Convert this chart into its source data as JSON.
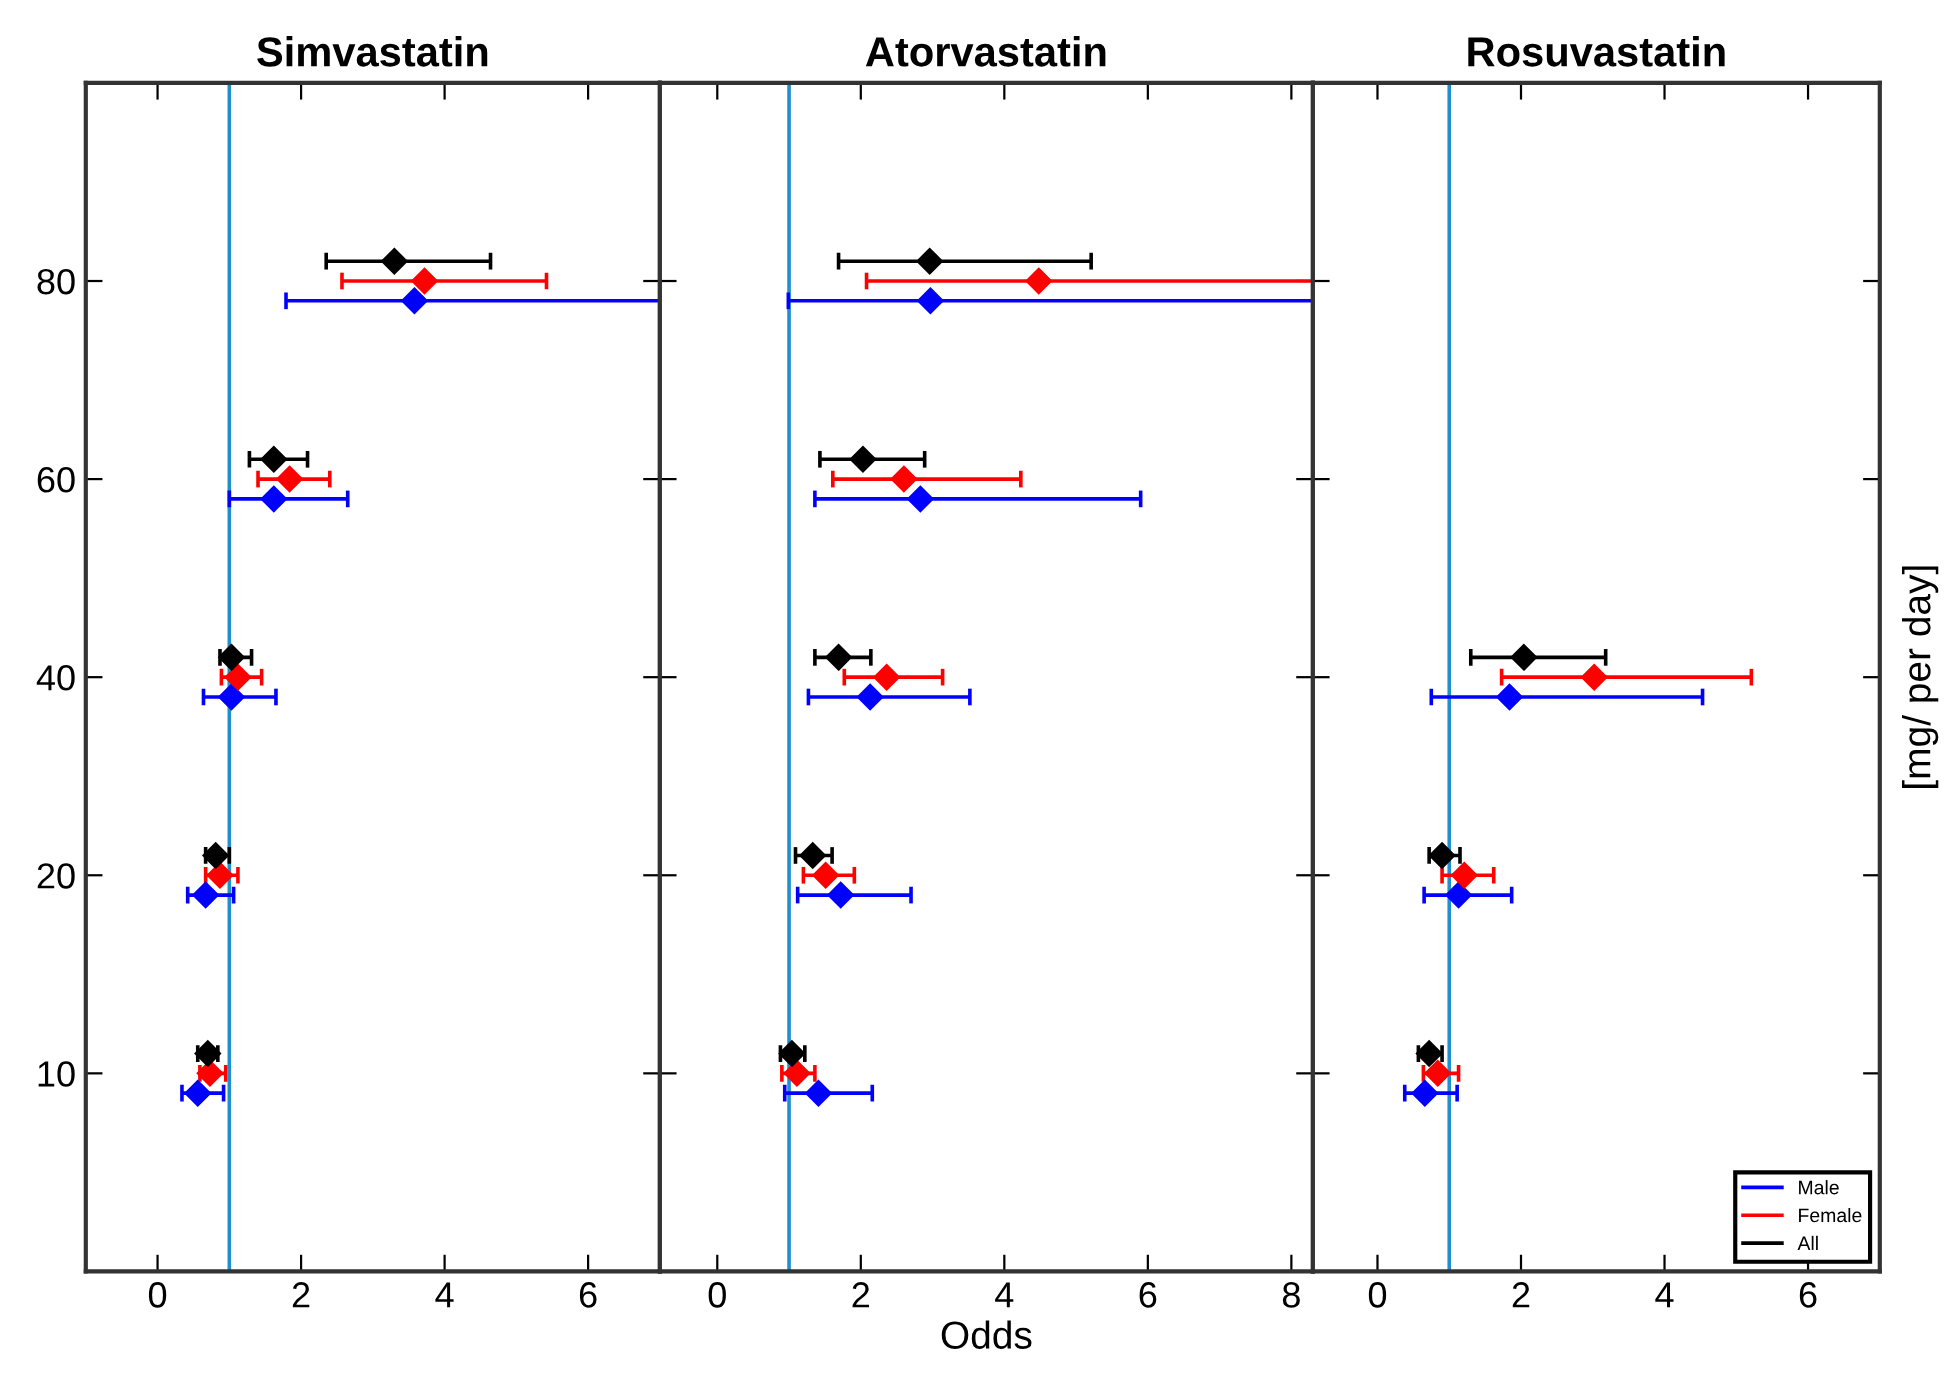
{
  "chart_data": [
    {
      "type": "scatter",
      "orientation": "horizontal",
      "title": "Simvastatin",
      "xlim": [
        -1,
        7
      ],
      "xticks": [
        0,
        2,
        4,
        6
      ],
      "categories": [
        "80",
        "60",
        "40",
        "20",
        "10"
      ],
      "marker": "diamond",
      "grid": false,
      "legend": false,
      "ref_lines": [
        {
          "axis": "x",
          "value": 1,
          "color": "#1f8fd0"
        }
      ],
      "series": [
        {
          "color": "#0000ff",
          "values": [
            3.58,
            1.62,
            1.03,
            0.67,
            0.56
          ],
          "errors": [
            [
              1.79,
              7
            ],
            [
              1.0,
              2.65
            ],
            [
              0.64,
              1.65
            ],
            [
              0.42,
              1.06
            ],
            [
              0.34,
              0.92
            ]
          ]
        },
        {
          "color": "#ff0000",
          "values": [
            3.72,
            1.84,
            1.12,
            0.87,
            0.73
          ],
          "errors": [
            [
              2.57,
              5.42
            ],
            [
              1.4,
              2.4
            ],
            [
              0.89,
              1.45
            ],
            [
              0.67,
              1.12
            ],
            [
              0.59,
              0.95
            ]
          ]
        },
        {
          "color": "#000000",
          "values": [
            3.3,
            1.62,
            1.03,
            0.81,
            0.7
          ],
          "errors": [
            [
              2.35,
              4.64
            ],
            [
              1.28,
              2.09
            ],
            [
              0.87,
              1.31
            ],
            [
              0.67,
              1.0
            ],
            [
              0.56,
              0.84
            ]
          ]
        }
      ]
    },
    {
      "type": "scatter",
      "orientation": "horizontal",
      "title": "Atorvastatin",
      "xlabel": "Odds",
      "xlim": [
        -0.8,
        8.3
      ],
      "xticks": [
        0,
        2,
        4,
        6,
        8
      ],
      "categories": [
        "80",
        "60",
        "40",
        "20",
        "10"
      ],
      "tick_labels": "x",
      "marker": "diamond",
      "grid": false,
      "legend": false,
      "ref_lines": [
        {
          "axis": "x",
          "value": 1,
          "color": "#1f8fd0"
        }
      ],
      "series": [
        {
          "color": "#0000ff",
          "values": [
            2.97,
            2.83,
            2.13,
            1.72,
            1.41
          ],
          "errors": [
            [
              0.99,
              8.3
            ],
            [
              1.36,
              5.9
            ],
            [
              1.27,
              3.52
            ],
            [
              1.12,
              2.7
            ],
            [
              0.94,
              2.16
            ]
          ]
        },
        {
          "color": "#ff0000",
          "values": [
            4.48,
            2.6,
            2.36,
            1.51,
            1.11
          ],
          "errors": [
            [
              2.08,
              8.3
            ],
            [
              1.61,
              4.23
            ],
            [
              1.77,
              3.14
            ],
            [
              1.2,
              1.91
            ],
            [
              0.9,
              1.36
            ]
          ]
        },
        {
          "color": "#000000",
          "values": [
            2.96,
            2.03,
            1.69,
            1.33,
            1.04
          ],
          "errors": [
            [
              1.69,
              5.21
            ],
            [
              1.43,
              2.89
            ],
            [
              1.36,
              2.14
            ],
            [
              1.09,
              1.6
            ],
            [
              0.88,
              1.22
            ]
          ]
        }
      ]
    },
    {
      "type": "scatter",
      "orientation": "horizontal",
      "title": "Rosuvastatin",
      "ylabel": "[mg/ per day]",
      "xlim": [
        -0.9,
        7
      ],
      "xticks": [
        0,
        2,
        4,
        6
      ],
      "categories": [
        "80",
        "60",
        "40",
        "20",
        "10"
      ],
      "tick_labels": "x",
      "marker": "diamond",
      "grid": false,
      "legend": "bottom right",
      "ref_lines": [
        {
          "axis": "x",
          "value": 1,
          "color": "#1f8fd0"
        }
      ],
      "series": [
        {
          "name": "Male",
          "color": "#0000ff",
          "values": [
            null,
            null,
            1.84,
            1.13,
            0.66
          ],
          "errors": [
            null,
            null,
            [
              0.75,
              4.53
            ],
            [
              0.65,
              1.87
            ],
            [
              0.38,
              1.11
            ]
          ]
        },
        {
          "name": "Female",
          "color": "#ff0000",
          "values": [
            null,
            null,
            3.02,
            1.21,
            0.84
          ],
          "errors": [
            null,
            null,
            [
              1.73,
              5.21
            ],
            [
              0.9,
              1.62
            ],
            [
              0.64,
              1.13
            ]
          ]
        },
        {
          "name": "All",
          "color": "#000000",
          "values": [
            null,
            null,
            2.04,
            0.9,
            0.72
          ],
          "errors": [
            null,
            null,
            [
              1.3,
              3.18
            ],
            [
              0.72,
              1.15
            ],
            [
              0.57,
              0.9
            ]
          ]
        }
      ]
    }
  ]
}
